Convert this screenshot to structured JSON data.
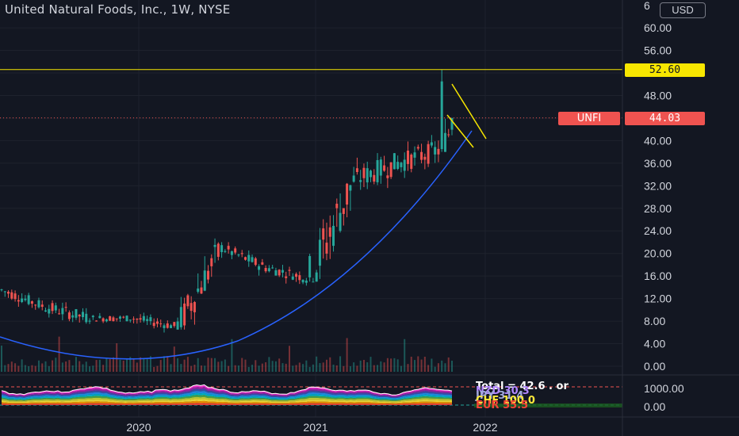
{
  "header": {
    "title": "United Natural Foods, Inc., 1W, NYSE",
    "currency": "USD",
    "top_tick_fragment": "6"
  },
  "price_tags": {
    "resistance": "52.60",
    "symbol": "UNFI",
    "last_price": "44.03"
  },
  "colors": {
    "background": "#131722",
    "up": "#26a69a",
    "down": "#ef5350",
    "resistance_line": "#f7e600",
    "trend_curve": "#2962ff",
    "wedge_lines": "#f7e600",
    "last_price_line": "#ef5350"
  },
  "chart_data": [
    {
      "type": "candlestick",
      "symbol": "UNFI",
      "interval": "1W",
      "exchange": "NYSE",
      "y_axis": {
        "ticks": [
          "0.00",
          "4.00",
          "8.00",
          "12.00",
          "16.00",
          "20.00",
          "24.00",
          "28.00",
          "32.00",
          "36.00",
          "40.00",
          "44.00",
          "48.00",
          "52.00",
          "56.00",
          "60.00"
        ],
        "ylim": [
          0,
          64
        ]
      },
      "x_axis": {
        "ticks": [
          "2020",
          "2021",
          "2022"
        ]
      },
      "segments": [
        {
          "period": "2019-Q2",
          "start": 13.5,
          "end": 10.5,
          "low": 9.0,
          "high": 14.5
        },
        {
          "period": "2019-Q3",
          "start": 10.5,
          "end": 8.5,
          "low": 7.5,
          "high": 13.8
        },
        {
          "period": "2019-Q4",
          "start": 8.5,
          "end": 8.5,
          "low": 6.5,
          "high": 10.0
        },
        {
          "period": "2020-Q1",
          "start": 8.5,
          "end": 7.0,
          "low": 5.0,
          "high": 9.5
        },
        {
          "period": "2020-Q2",
          "start": 7.0,
          "end": 21.0,
          "low": 6.5,
          "high": 23.5
        },
        {
          "period": "2020-Q3",
          "start": 21.0,
          "end": 17.5,
          "low": 16.0,
          "high": 22.0
        },
        {
          "period": "2020-Q4",
          "start": 17.5,
          "end": 15.5,
          "low": 14.0,
          "high": 19.5
        },
        {
          "period": "2021-Q1",
          "start": 15.5,
          "end": 33.0,
          "low": 15.0,
          "high": 41.0
        },
        {
          "period": "2021-Q2",
          "start": 33.0,
          "end": 36.0,
          "low": 31.0,
          "high": 42.5
        },
        {
          "period": "2021-Q3",
          "start": 36.0,
          "end": 38.5,
          "low": 30.5,
          "high": 41.0
        },
        {
          "period": "2021-Q3-end",
          "start": 38.5,
          "end": 44.03,
          "low": 38.0,
          "high": 52.6
        }
      ],
      "last_price": 44.03,
      "annotations": {
        "resistance_level": 52.6
      }
    },
    {
      "type": "area",
      "name_indicator": "sub-pane stacked indicator",
      "y_axis": {
        "ticks": [
          "0.00",
          "1000.00"
        ]
      },
      "legend_labels": [
        "Total = 42.6 . or",
        "NZD 30.3",
        "JPY 31.4",
        "CHF 100.0",
        "EUR 55.5"
      ]
    }
  ]
}
